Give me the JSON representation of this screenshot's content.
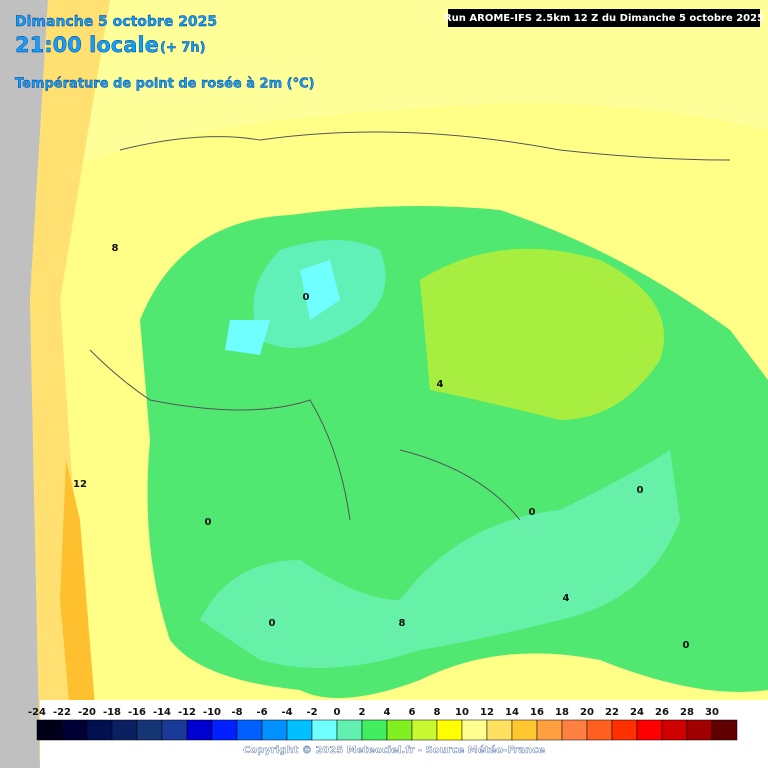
{
  "header": {
    "date": "Dimanche 5 octobre 2025",
    "time": "21:00 locale",
    "offset": "(+ 7h)",
    "variable": "Température de point de rosée à 2m (°C)",
    "run": "Run AROME-IFS 2.5km 12 Z du Dimanche 5 octobre 2025"
  },
  "map": {
    "contour_labels": [
      "8",
      "0",
      "4",
      "12",
      "0",
      "0",
      "0",
      "4",
      "0",
      "8",
      "0"
    ]
  },
  "colorbar": {
    "labels": [
      -24,
      -22,
      -20,
      -18,
      -16,
      -14,
      -12,
      -10,
      -8,
      -6,
      -4,
      -2,
      0,
      2,
      4,
      6,
      8,
      10,
      12,
      14,
      16,
      18,
      20,
      22,
      24,
      26,
      28,
      30
    ],
    "colors": [
      "#000018",
      "#000035",
      "#001050",
      "#0a2060",
      "#153575",
      "#1a3a9a",
      "#0000d0",
      "#0020ff",
      "#0060ff",
      "#0090ff",
      "#00c0ff",
      "#70ffff",
      "#60f0b0",
      "#40ee60",
      "#80f020",
      "#c8f830",
      "#ffff00",
      "#ffff90",
      "#ffe060",
      "#ffc830",
      "#ffa040",
      "#ff8040",
      "#ff6020",
      "#ff3000",
      "#ff0000",
      "#d00000",
      "#a00000",
      "#600000"
    ]
  },
  "footer": {
    "copyright": "Copyright © 2025 Meteociel.fr - Source Météo-France"
  }
}
